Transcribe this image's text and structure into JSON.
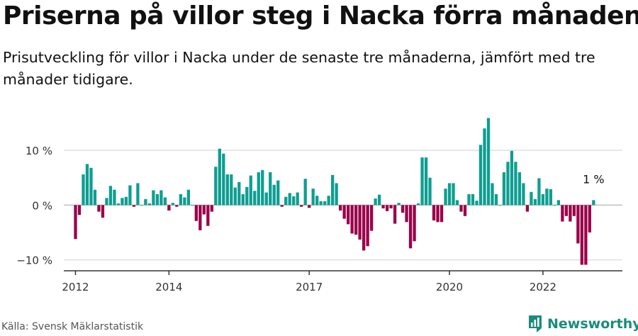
{
  "title": "Priserna på villor steg i Nacka förra månaden",
  "subtitle": "Prisutveckling för villor i Nacka under de senaste tre månaderna, jämfört med tre månader tidigare.",
  "source": "Källa: Svensk Mäklarstatistik",
  "brand": {
    "name": "Newsworthy",
    "icon": "newsworthy-logo-icon"
  },
  "colors": {
    "positive": "#0e9e92",
    "negative": "#99004a",
    "grid": "#dddddd",
    "axis": "#333333"
  },
  "chart_data": {
    "type": "bar",
    "unit": "%",
    "ylim": [
      -12,
      17
    ],
    "yticks": [
      {
        "value": 10,
        "label": "10 %"
      },
      {
        "value": 0,
        "label": "0 %"
      },
      {
        "value": -10,
        "label": "−10 %"
      }
    ],
    "xlim": [
      2011.75,
      2023.7
    ],
    "xticks": [
      {
        "value": 2012,
        "label": "2012"
      },
      {
        "value": 2014,
        "label": "2014"
      },
      {
        "value": 2017,
        "label": "2017"
      },
      {
        "value": 2020,
        "label": "2020"
      },
      {
        "value": 2022,
        "label": "2022"
      }
    ],
    "grid": true,
    "annotation": {
      "text": "1 %",
      "target": "last"
    },
    "start": "2012-01",
    "frequency": "monthly",
    "values": [
      -6.2,
      -1.8,
      5.6,
      7.5,
      6.8,
      2.8,
      -1.2,
      -2.3,
      1.3,
      3.5,
      2.8,
      0.3,
      1.3,
      1.5,
      3.6,
      -0.3,
      4.0,
      0.0,
      1.1,
      0.3,
      2.7,
      2.0,
      2.7,
      1.4,
      -1.0,
      0.4,
      -0.3,
      2.0,
      1.4,
      2.8,
      0.0,
      -2.9,
      -4.6,
      -1.7,
      -3.8,
      -1.2,
      7.0,
      10.3,
      9.4,
      5.6,
      5.6,
      3.2,
      4.2,
      2.0,
      3.3,
      5.4,
      2.6,
      6.0,
      6.4,
      2.3,
      6.0,
      3.7,
      4.5,
      -0.3,
      1.5,
      2.2,
      1.6,
      2.3,
      -0.3,
      4.8,
      -0.5,
      3.0,
      1.7,
      0.7,
      0.7,
      1.7,
      5.5,
      4.0,
      -1.0,
      -2.5,
      -3.5,
      -5.2,
      -5.4,
      -6.3,
      -8.3,
      -7.5,
      -4.7,
      1.2,
      1.9,
      -0.6,
      -1.1,
      -0.6,
      -3.4,
      0.4,
      -1.4,
      -3.1,
      -7.9,
      -6.6,
      0.3,
      8.7,
      8.7,
      5.0,
      -2.8,
      -3.1,
      -3.1,
      3.0,
      4.0,
      4.0,
      0.9,
      -1.2,
      -2.0,
      2.0,
      2.0,
      0.8,
      11.0,
      14.0,
      15.9,
      4.0,
      2.0,
      0.0,
      6.0,
      7.9,
      9.9,
      7.9,
      6.0,
      4.0,
      -1.2,
      2.4,
      1.1,
      4.9,
      2.0,
      3.0,
      2.9,
      0.0,
      0.9,
      -3.0,
      -2.0,
      -3.0,
      -2.0,
      -7.0,
      -10.9,
      -10.9,
      -5.0,
      0.9
    ]
  }
}
